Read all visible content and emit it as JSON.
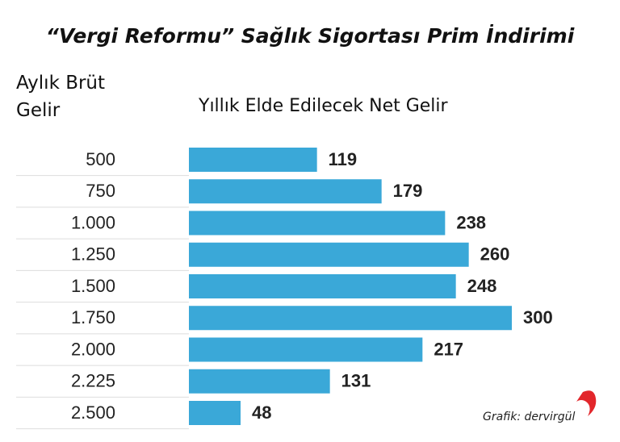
{
  "chart_data": {
    "type": "bar",
    "orientation": "horizontal",
    "title": "“Vergi Reformu” Sağlık Sigortası Prim İndirimi",
    "category_axis_label": "Aylık Brüt Gelir",
    "value_header": "Yıllık Elde Edilecek Net Gelir",
    "credit": "Grafik: dervirgül",
    "categories": [
      "500",
      "750",
      "1.000",
      "1.250",
      "1.500",
      "1.750",
      "2.000",
      "2.225",
      "2.500"
    ],
    "values": [
      119,
      179,
      238,
      260,
      248,
      300,
      217,
      131,
      48
    ],
    "color": "#3aa8d8"
  }
}
